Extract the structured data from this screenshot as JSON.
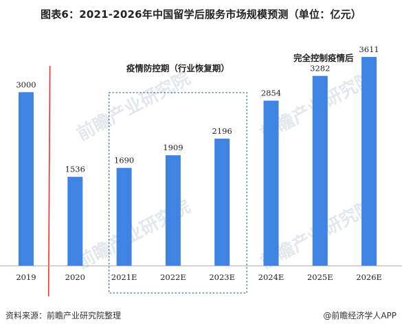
{
  "title": "图表6：2021-2026年中国留学后服务市场规模预测（单位：亿元）",
  "footer": {
    "source": "资料来源：前瞻产业研究院整理",
    "brand": "@前瞻经济学人APP"
  },
  "watermark": "前瞻产业研究院",
  "colors": {
    "bar": "#3f83e3",
    "axis": "#b0b0b0",
    "divider": "#ff2a2a",
    "box": "#1a5a8a",
    "watermark": "#e3e8ee"
  },
  "chart_data": {
    "type": "bar",
    "categories": [
      "2019",
      "2020",
      "2021E",
      "2022E",
      "2023E",
      "2024E",
      "2025E",
      "2026E"
    ],
    "values": [
      3000,
      1536,
      1690,
      1909,
      2196,
      2854,
      3282,
      3611
    ],
    "title": "图表6：2021-2026年中国留学后服务市场规模预测（单位：亿元）",
    "xlabel": "",
    "ylabel": "",
    "ylim": [
      0,
      4000
    ],
    "grid": false,
    "legend": "none",
    "annotations": [
      {
        "text": "疫情防控期（行业恢复期）",
        "spans": [
          "2021E",
          "2022E",
          "2023E"
        ],
        "style": "dotted-box"
      },
      {
        "text": "完全控制疫情后",
        "spans": [
          "2024E",
          "2025E",
          "2026E"
        ],
        "style": "label"
      }
    ],
    "divider_after": "2019"
  }
}
